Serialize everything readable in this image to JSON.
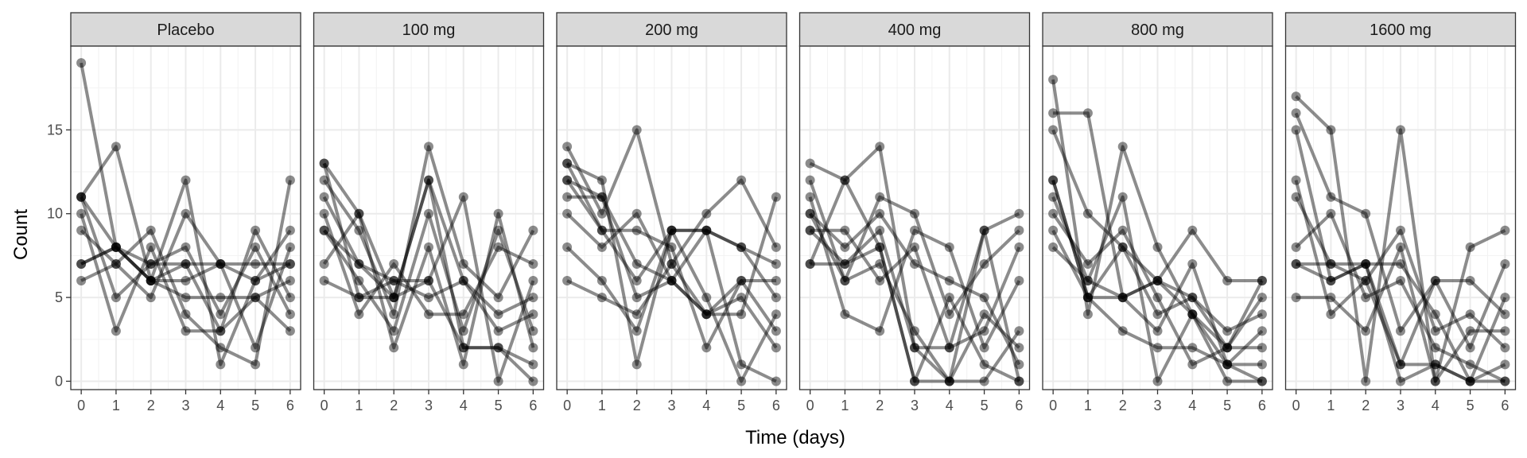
{
  "chart_data": {
    "type": "line",
    "xlabel": "Time (days)",
    "ylabel": "Count",
    "x": [
      0,
      1,
      2,
      3,
      4,
      5,
      6
    ],
    "xticks": [
      0,
      1,
      2,
      3,
      4,
      5,
      6
    ],
    "yticks": [
      0,
      5,
      10,
      15
    ],
    "xlim": [
      -0.3,
      6.3
    ],
    "ylim": [
      -0.5,
      20
    ],
    "grid": true,
    "legend": "none",
    "colors": {
      "line": "#000000",
      "panel_border": "#333333",
      "strip_fill": "#d9d9d9",
      "grid": "#ebebeb"
    },
    "panels": [
      {
        "title": "Placebo",
        "series": [
          {
            "values": [
              19,
              8,
              7,
              7,
              7,
              7,
              7
            ]
          },
          {
            "values": [
              11,
              5,
              7,
              8,
              4,
              8,
              4
            ]
          },
          {
            "values": [
              11,
              14,
              6,
              5,
              5,
              5,
              6
            ]
          },
          {
            "values": [
              10,
              3,
              8,
              3,
              3,
              9,
              5
            ]
          },
          {
            "values": [
              9,
              7,
              5,
              10,
              7,
              2,
              8
            ]
          },
          {
            "values": [
              7,
              8,
              6,
              12,
              1,
              6,
              9
            ]
          },
          {
            "values": [
              6,
              7,
              9,
              4,
              2,
              1,
              12
            ]
          },
          {
            "values": [
              7,
              8,
              6,
              7,
              3,
              5,
              3
            ]
          },
          {
            "values": [
              11,
              8,
              6,
              6,
              7,
              6,
              7
            ]
          }
        ]
      },
      {
        "title": "100 mg",
        "series": [
          {
            "values": [
              13,
              10,
              5,
              12,
              2,
              2,
              0
            ]
          },
          {
            "values": [
              12,
              9,
              4,
              14,
              7,
              5,
              9
            ]
          },
          {
            "values": [
              11,
              7,
              6,
              6,
              11,
              0,
              6
            ]
          },
          {
            "values": [
              10,
              4,
              7,
              4,
              4,
              8,
              7
            ]
          },
          {
            "values": [
              9,
              6,
              3,
              10,
              3,
              9,
              3
            ]
          },
          {
            "values": [
              7,
              10,
              2,
              8,
              1,
              10,
              2
            ]
          },
          {
            "values": [
              6,
              5,
              6,
              5,
              6,
              4,
              5
            ]
          },
          {
            "values": [
              9,
              7,
              5,
              6,
              2,
              2,
              1
            ]
          },
          {
            "values": [
              13,
              5,
              5,
              12,
              6,
              3,
              4
            ]
          }
        ]
      },
      {
        "title": "200 mg",
        "series": [
          {
            "values": [
              14,
              10,
              15,
              7,
              10,
              12,
              8
            ]
          },
          {
            "values": [
              13,
              12,
              1,
              9,
              9,
              8,
              7
            ]
          },
          {
            "values": [
              12,
              9,
              9,
              8,
              2,
              6,
              6
            ]
          },
          {
            "values": [
              11,
              11,
              5,
              6,
              9,
              8,
              5
            ]
          },
          {
            "values": [
              10,
              8,
              10,
              6,
              4,
              5,
              2
            ]
          },
          {
            "values": [
              8,
              6,
              3,
              9,
              5,
              0,
              4
            ]
          },
          {
            "values": [
              6,
              5,
              4,
              7,
              4,
              4,
              11
            ]
          },
          {
            "values": [
              13,
              9,
              6,
              9,
              9,
              1,
              0
            ]
          },
          {
            "values": [
              12,
              11,
              7,
              6,
              4,
              6,
              3
            ]
          }
        ]
      },
      {
        "title": "400 mg",
        "series": [
          {
            "values": [
              13,
              12,
              14,
              2,
              0,
              9,
              10
            ]
          },
          {
            "values": [
              12,
              6,
              11,
              10,
              4,
              7,
              9
            ]
          },
          {
            "values": [
              11,
              4,
              3,
              9,
              8,
              2,
              6
            ]
          },
          {
            "values": [
              10,
              8,
              10,
              7,
              6,
              5,
              1
            ]
          },
          {
            "values": [
              9,
              9,
              6,
              8,
              2,
              3,
              8
            ]
          },
          {
            "values": [
              7,
              12,
              8,
              0,
              5,
              1,
              0
            ]
          },
          {
            "values": [
              7,
              7,
              9,
              2,
              2,
              9,
              0
            ]
          },
          {
            "values": [
              10,
              6,
              7,
              3,
              0,
              4,
              2
            ]
          },
          {
            "values": [
              9,
              7,
              8,
              0,
              0,
              0,
              3
            ]
          }
        ]
      },
      {
        "title": "800 mg",
        "series": [
          {
            "values": [
              18,
              4,
              14,
              8,
              4,
              2,
              6
            ]
          },
          {
            "values": [
              16,
              16,
              5,
              6,
              9,
              6,
              6
            ]
          },
          {
            "values": [
              15,
              10,
              8,
              4,
              5,
              3,
              4
            ]
          },
          {
            "values": [
              12,
              5,
              3,
              2,
              2,
              1,
              3
            ]
          },
          {
            "values": [
              11,
              6,
              11,
              0,
              4,
              0,
              0
            ]
          },
          {
            "values": [
              10,
              7,
              9,
              5,
              1,
              2,
              5
            ]
          },
          {
            "values": [
              9,
              5,
              5,
              6,
              5,
              2,
              2
            ]
          },
          {
            "values": [
              8,
              6,
              5,
              3,
              7,
              1,
              0
            ]
          },
          {
            "values": [
              12,
              5,
              8,
              6,
              4,
              1,
              1
            ]
          }
        ]
      },
      {
        "title": "1600 mg",
        "series": [
          {
            "values": [
              17,
              15,
              0,
              15,
              0,
              8,
              9
            ]
          },
          {
            "values": [
              16,
              11,
              10,
              3,
              6,
              6,
              4
            ]
          },
          {
            "values": [
              12,
              4,
              6,
              9,
              3,
              4,
              2
            ]
          },
          {
            "values": [
              11,
              7,
              7,
              7,
              4,
              0,
              1
            ]
          },
          {
            "values": [
              8,
              10,
              5,
              6,
              2,
              1,
              0
            ]
          },
          {
            "values": [
              7,
              6,
              7,
              0,
              1,
              0,
              5
            ]
          },
          {
            "values": [
              5,
              5,
              3,
              8,
              0,
              3,
              3
            ]
          },
          {
            "values": [
              15,
              6,
              7,
              1,
              6,
              2,
              7
            ]
          },
          {
            "values": [
              7,
              7,
              6,
              1,
              1,
              0,
              0
            ]
          }
        ]
      }
    ]
  }
}
